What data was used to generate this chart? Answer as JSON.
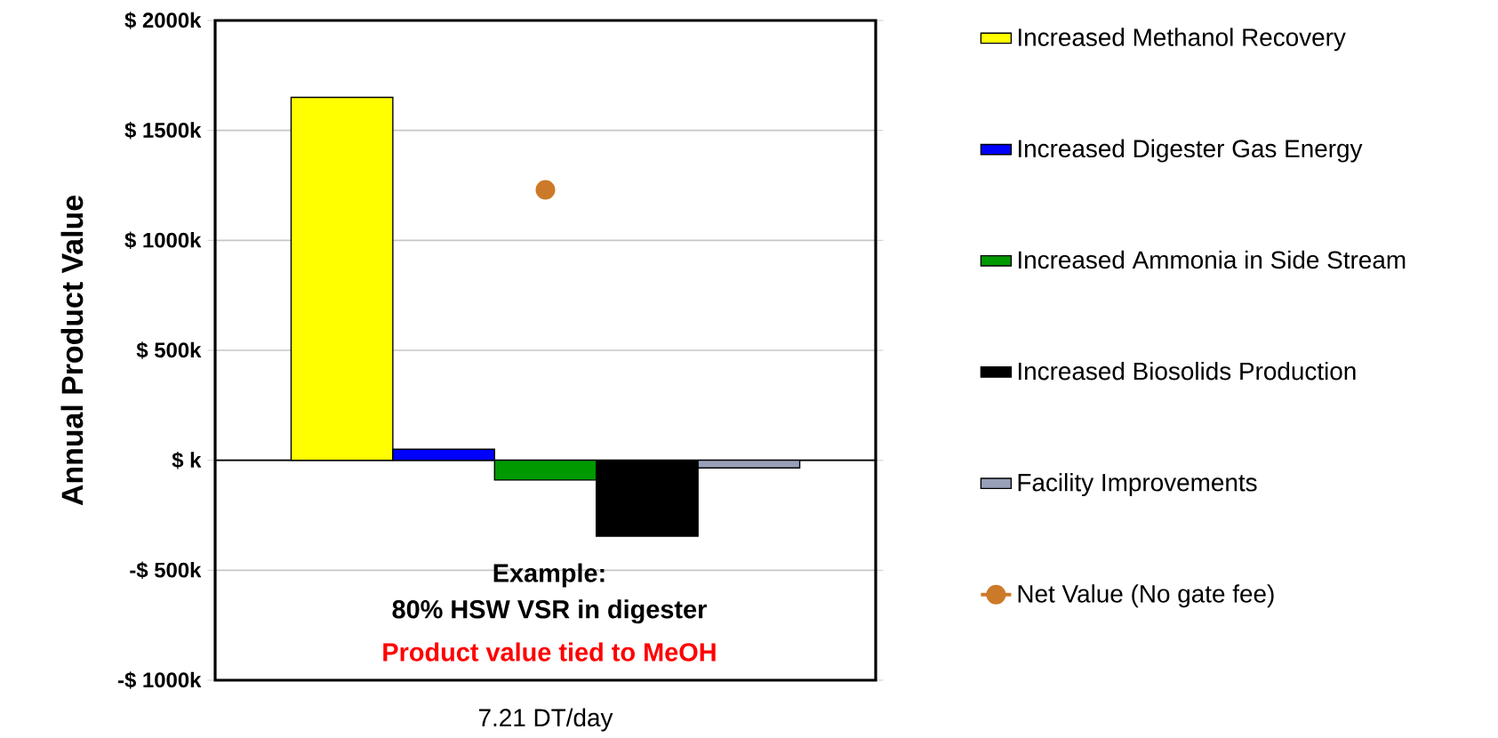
{
  "chart_data": {
    "type": "bar",
    "ylabel": "Annual Product Value",
    "categories": [
      "7.21 DT/day"
    ],
    "series": [
      {
        "name": "Increased Methanol Recovery",
        "color": "#ffff00",
        "values": [
          1650
        ]
      },
      {
        "name": "Increased Digester Gas Energy",
        "color": "#0000ff",
        "values": [
          50
        ]
      },
      {
        "name": "Increased Ammonia in Side Stream",
        "color": "#009900",
        "values": [
          -90
        ]
      },
      {
        "name": "Increased Biosolids Production",
        "color": "#000000",
        "values": [
          -345
        ]
      },
      {
        "name": "Facility Improvements",
        "color": "#98a0b8",
        "values": [
          -35
        ]
      },
      {
        "name": "Net Value   (No gate fee)",
        "color": "#cc7a29",
        "type": "line",
        "marker": "circle",
        "values": [
          1230
        ]
      }
    ],
    "ylim": [
      -1000,
      2000
    ],
    "yticks": [
      {
        "value": -1000,
        "label": "-$ 1000k"
      },
      {
        "value": -500,
        "label": "-$ 500k"
      },
      {
        "value": 0,
        "label": "$ k"
      },
      {
        "value": 500,
        "label": "$ 500k"
      },
      {
        "value": 1000,
        "label": "$ 1000k"
      },
      {
        "value": 1500,
        "label": "$ 1500k"
      },
      {
        "value": 2000,
        "label": "$ 2000k"
      }
    ],
    "grid": "y",
    "legend": "right",
    "annotations": [
      "Example:",
      "80% HSW VSR in digester",
      "Product value tied to MeOH"
    ]
  }
}
